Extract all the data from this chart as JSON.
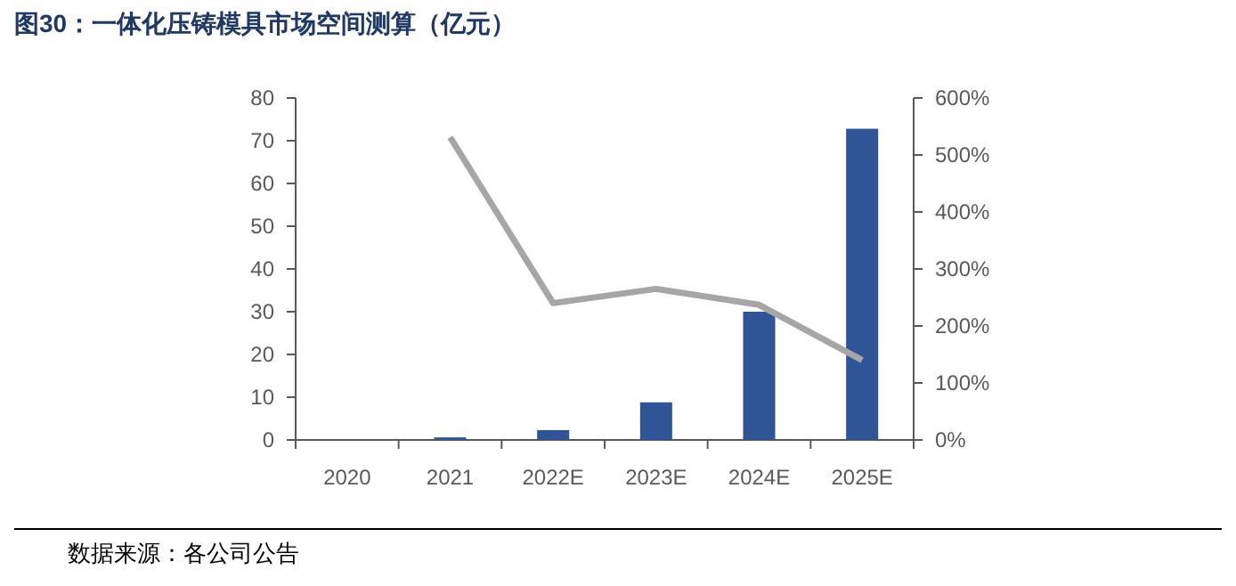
{
  "chart_data": {
    "type": "bar",
    "title": "图30：一体化压铸模具市场空间测算（亿元）",
    "categories": [
      "2020",
      "2021",
      "2022E",
      "2023E",
      "2024E",
      "2025E"
    ],
    "series": [
      {
        "color": "#2f5597",
        "values": [
          0,
          0.6,
          2.3,
          8.8,
          30,
          72.8
        ]
      },
      {
        "type": "line",
        "axis": "y2",
        "color": "#a6a6a6",
        "values": [
          null,
          531,
          240,
          265,
          237,
          140
        ]
      }
    ],
    "ylim": [
      0,
      80
    ],
    "yticks": [
      0,
      10,
      20,
      30,
      40,
      50,
      60,
      70,
      80
    ],
    "y2lim": [
      0,
      600
    ],
    "y2ticks": [
      {
        "value": 0,
        "label": "0%"
      },
      {
        "value": 100,
        "label": "100%"
      },
      {
        "value": 200,
        "label": "200%"
      },
      {
        "value": 300,
        "label": "300%"
      },
      {
        "value": 400,
        "label": "400%"
      },
      {
        "value": 500,
        "label": "500%"
      },
      {
        "value": 600,
        "label": "600%"
      }
    ],
    "annotations": [
      "数据来源：各公司公告"
    ]
  }
}
